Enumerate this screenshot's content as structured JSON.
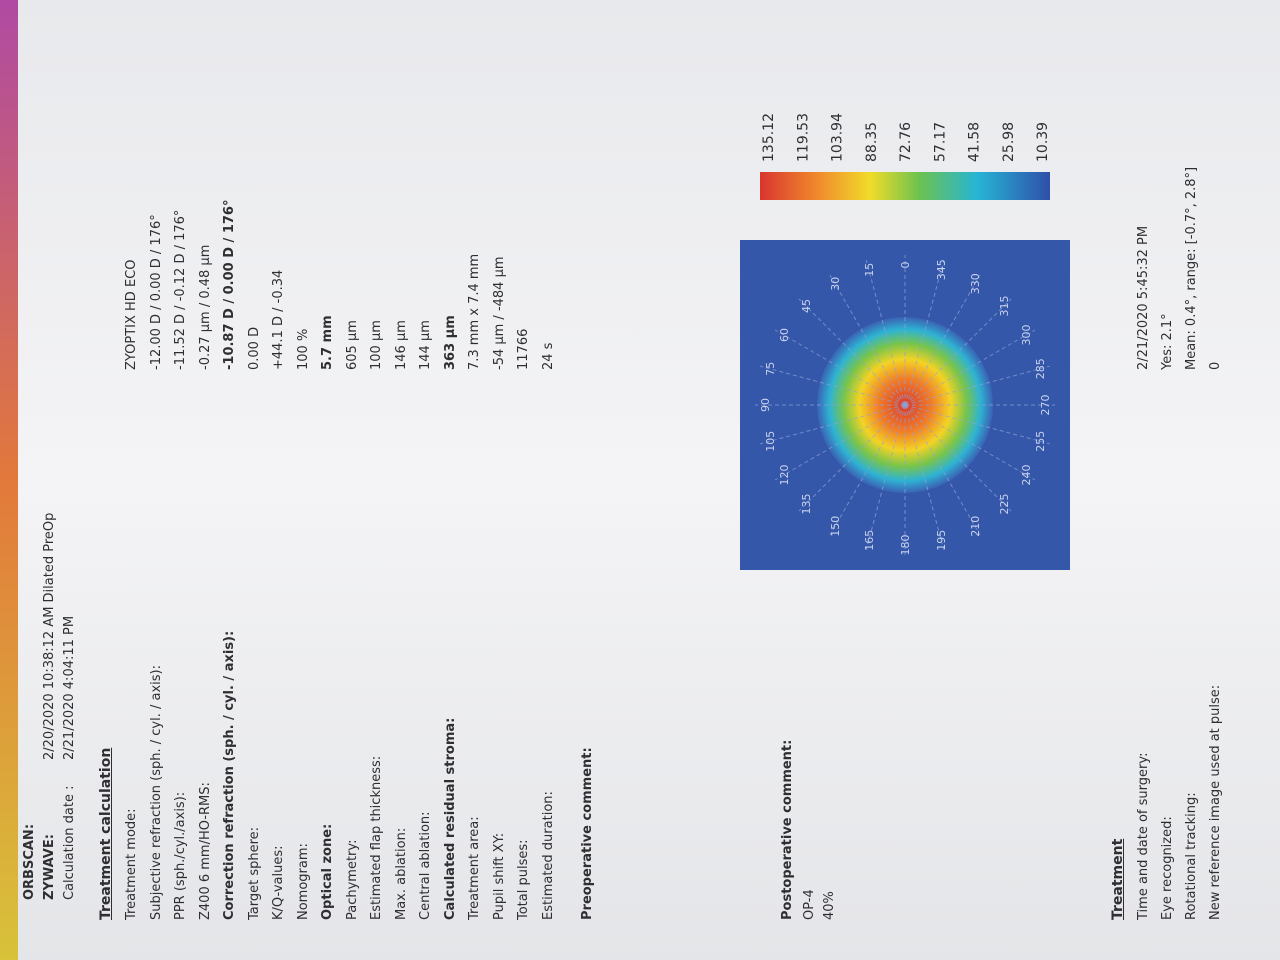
{
  "header": {
    "orbscan_label": "ORBSCAN:",
    "zywave_label": "ZYWAVE:",
    "zywave_value": "2/20/2020 10:38:12 AM Dilated PreOp",
    "calc_label": "Calculation date :",
    "calc_value": "2/21/2020 4:04:11 PM"
  },
  "treatment_calculation": {
    "title": "Treatment calculation",
    "rows": [
      {
        "label": "Treatment mode:",
        "value": "ZYOPTIX HD ECO"
      },
      {
        "label": "Subjective refraction (sph. / cyl. / axis):",
        "value": "-12.00 D /  0.00 D / 176°"
      },
      {
        "label": "PPR (sph./cyl./axis):",
        "value": "-11.52 D /  -0.12 D / 176°"
      },
      {
        "label": "Z400 6 mm/HO-RMS:",
        "value": "-0.27 µm / 0.48 µm"
      },
      {
        "label": "Correction refraction (sph. / cyl. / axis):",
        "value": "-10.87 D /  0.00 D / 176°",
        "bold": true
      },
      {
        "label": "Target sphere:",
        "value": "0.00 D"
      },
      {
        "label": "K/Q-values:",
        "value": "+44.1 D /  -0.34"
      },
      {
        "label": "Nomogram:",
        "value": "100 %"
      },
      {
        "label": "Optical zone:",
        "value": "5.7 mm",
        "bold": true
      },
      {
        "label": "Pachymetry:",
        "value": "605 µm"
      },
      {
        "label": "Estimated flap thickness:",
        "value": "100 µm"
      },
      {
        "label": "Max. ablation:",
        "value": "146 µm"
      },
      {
        "label": "Central ablation:",
        "value": "144 µm"
      },
      {
        "label": "Calculated residual stroma:",
        "value": "363 µm",
        "bold": true
      },
      {
        "label": "Treatment area:",
        "value": "7.3 mm x 7.4 mm"
      },
      {
        "label": "Pupil shift XY:",
        "value": "-54 µm /  -484 µm"
      },
      {
        "label": "Total pulses:",
        "value": "11766"
      },
      {
        "label": "Estimated duration:",
        "value": "24 s"
      }
    ]
  },
  "comments": {
    "preoperative_label": "Preoperative comment:",
    "postoperative_label": "Postoperative comment:",
    "postoperative_lines": [
      "OP-4",
      "40%"
    ]
  },
  "ablation_map": {
    "angle_labels": [
      0,
      15,
      30,
      45,
      60,
      75,
      90,
      105,
      120,
      135,
      150,
      165,
      180,
      195,
      210,
      225,
      240,
      255,
      270,
      285,
      300,
      315,
      330,
      345
    ],
    "scale_labels": [
      135.12,
      119.53,
      103.94,
      88.35,
      72.76,
      57.17,
      41.58,
      25.98,
      10.39
    ]
  },
  "treatment": {
    "title": "Treatment",
    "rows": [
      {
        "label": "Time and date of surgery:",
        "value": "2/21/2020 5:45:32 PM"
      },
      {
        "label": "Eye recognized:",
        "value": "Yes: 2.1°"
      },
      {
        "label": "Rotational tracking:",
        "value": "Mean: 0.4°, range: [-0.7°, 2.8°]"
      },
      {
        "label": "New reference image used at pulse:",
        "value": "0"
      }
    ]
  }
}
